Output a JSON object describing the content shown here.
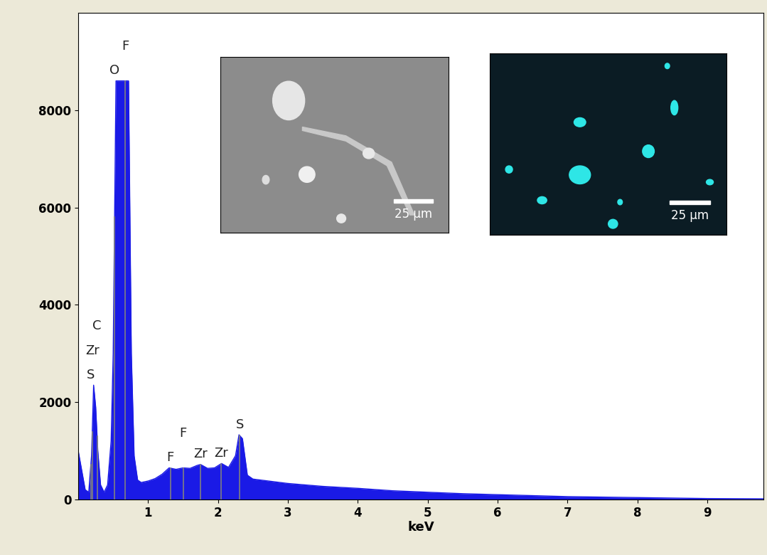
{
  "chart_data": {
    "type": "area",
    "xlabel": "keV",
    "x": [
      0.0,
      0.05,
      0.1,
      0.15,
      0.19,
      0.22,
      0.25,
      0.28,
      0.32,
      0.37,
      0.42,
      0.47,
      0.5,
      0.54,
      0.72,
      0.76,
      0.8,
      0.85,
      0.9,
      1.0,
      1.1,
      1.2,
      1.3,
      1.4,
      1.5,
      1.6,
      1.7,
      1.75,
      1.85,
      1.95,
      2.05,
      2.15,
      2.25,
      2.3,
      2.35,
      2.42,
      2.5,
      3.0,
      3.5,
      4.0,
      4.5,
      5.0,
      5.5,
      6.0,
      6.5,
      7.0,
      7.5,
      8.0,
      8.5,
      9.0,
      9.8
    ],
    "values": [
      1000,
      600,
      200,
      150,
      900,
      2350,
      1900,
      1000,
      300,
      150,
      300,
      1200,
      3000,
      8600,
      8600,
      3000,
      900,
      400,
      350,
      380,
      430,
      520,
      650,
      620,
      650,
      640,
      700,
      720,
      640,
      650,
      740,
      660,
      900,
      1330,
      1250,
      500,
      420,
      330,
      270,
      230,
      180,
      150,
      120,
      100,
      80,
      60,
      50,
      40,
      30,
      20,
      15
    ],
    "color": "#1a1ae6",
    "xlim": [
      0,
      9.8
    ],
    "ylim": [
      0,
      10000
    ],
    "xticks": [
      1,
      2,
      3,
      4,
      5,
      6,
      7,
      8,
      9
    ],
    "yticks": [
      0,
      2000,
      4000,
      6000,
      8000
    ],
    "annotations": [
      {
        "x": 0.18,
        "text": "S"
      },
      {
        "x": 0.2,
        "text": "Zr"
      },
      {
        "x": 0.27,
        "text": "C"
      },
      {
        "x": 0.52,
        "text": "O"
      },
      {
        "x": 0.67,
        "text": "F"
      },
      {
        "x": 1.32,
        "text": "F"
      },
      {
        "x": 1.5,
        "text": "F"
      },
      {
        "x": 1.75,
        "text": "Zr"
      },
      {
        "x": 2.04,
        "text": "Zr"
      },
      {
        "x": 2.31,
        "text": "S"
      }
    ],
    "insets": [
      {
        "scale_bar": "25 µm"
      },
      {
        "scale_bar": "25 µm"
      }
    ]
  }
}
